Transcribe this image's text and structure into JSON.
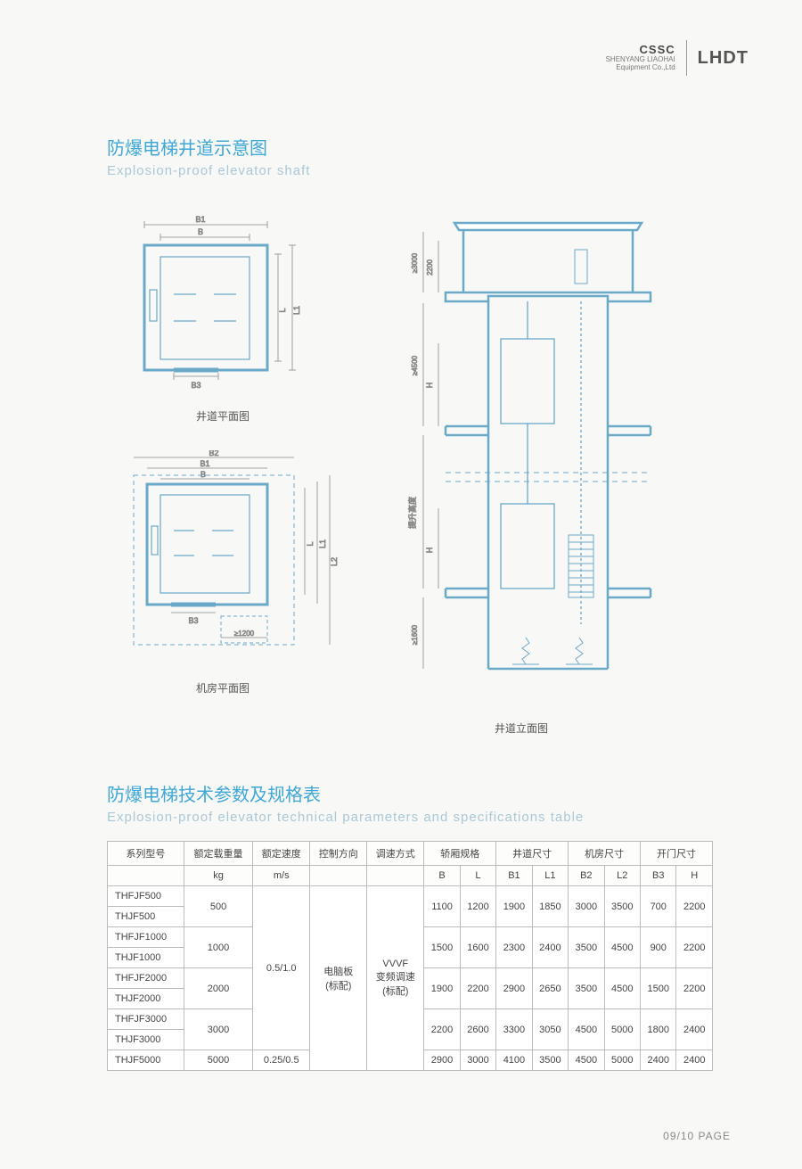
{
  "header": {
    "cssc": "CSSC",
    "company_line": "SHENYANG LIAOHAI",
    "company_sub": "Equipment Co.,Ltd",
    "lhdt": "LHDT"
  },
  "section1": {
    "cn": "防爆电梯井道示意图",
    "en": "Explosion-proof elevator shaft"
  },
  "diagram_captions": {
    "plan": "井道平面图",
    "machine_room": "机房平面图",
    "elevation": "井道立面图"
  },
  "diagram_labels": {
    "B": "B",
    "B1": "B1",
    "B2": "B2",
    "B3": "B3",
    "L": "L",
    "L1": "L1",
    "L2": "L2",
    "H": "H",
    "min1200": "≥1200",
    "min1600": "≥1600",
    "min4500": "≥4500",
    "min3000": "≥3000",
    "dim2200": "2200",
    "lift_height": "提升高度"
  },
  "diagram_style": {
    "stroke": "#6ba9c9",
    "stroke_thin": "#888888",
    "fill_none": "none",
    "dash": "4,3"
  },
  "section2": {
    "cn": "防爆电梯技术参数及规格表",
    "en": "Explosion-proof elevator technical parameters and specifications table"
  },
  "table": {
    "head1": [
      "系列型号",
      "额定载重量",
      "额定速度",
      "控制方向",
      "调速方式",
      "轿厢规格",
      "井道尺寸",
      "机房尺寸",
      "开门尺寸"
    ],
    "head2": [
      "",
      "kg",
      "m/s",
      "",
      "",
      "B",
      "L",
      "B1",
      "L1",
      "B2",
      "L2",
      "B3",
      "H"
    ],
    "control": "电脑板\n(标配)",
    "speed_mode": "VVVF\n变频调速\n(标配)",
    "rows": [
      {
        "models": [
          "THFJF500",
          "THJF500"
        ],
        "load": "500",
        "speed_merge": "0.5/1.0",
        "vals": [
          "1100",
          "1200",
          "1900",
          "1850",
          "3000",
          "3500",
          "700",
          "2200"
        ]
      },
      {
        "models": [
          "THFJF1000",
          "THJF1000"
        ],
        "load": "1000",
        "vals": [
          "1500",
          "1600",
          "2300",
          "2400",
          "3500",
          "4500",
          "900",
          "2200"
        ]
      },
      {
        "models": [
          "THFJF2000",
          "THJF2000"
        ],
        "load": "2000",
        "vals": [
          "1900",
          "2200",
          "2900",
          "2650",
          "3500",
          "4500",
          "1500",
          "2200"
        ]
      },
      {
        "models": [
          "THFJF3000",
          "THJF3000"
        ],
        "load": "3000",
        "vals": [
          "2200",
          "2600",
          "3300",
          "3050",
          "4500",
          "5000",
          "1800",
          "2400"
        ]
      },
      {
        "models": [
          "THJF5000"
        ],
        "load": "5000",
        "speed": "0.25/0.5",
        "vals": [
          "2900",
          "3000",
          "4100",
          "3500",
          "4500",
          "5000",
          "2400",
          "2400"
        ]
      }
    ]
  },
  "page_number": "09/10 PAGE"
}
